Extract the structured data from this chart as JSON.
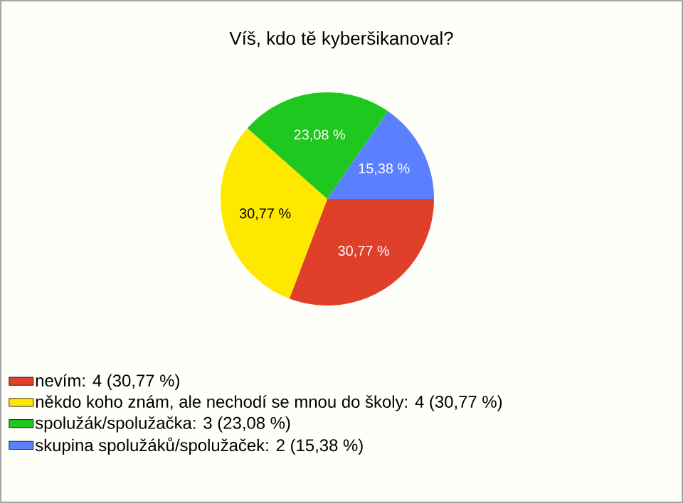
{
  "chart_data": {
    "type": "pie",
    "title": "Víš, kdo tě kyberšikanoval?",
    "categories": [
      "nevím: 4 (30,77 %)",
      "někdo koho znám, ale nechodí se mnou do školy: 4 (30,77 %)",
      "spolužák/spolužačka: 3 (23,08 %)",
      "skupina spolužáků/spolužaček: 2 (15,38 %)"
    ],
    "values": [
      30.77,
      30.77,
      23.08,
      15.38
    ],
    "value_labels": [
      "30,77 %",
      "30,77 %",
      "23,08 %",
      "15,38 %"
    ],
    "colors": [
      "#e0402a",
      "#ffe800",
      "#1ec81e",
      "#5a80ff"
    ],
    "legend": "bottom left"
  }
}
